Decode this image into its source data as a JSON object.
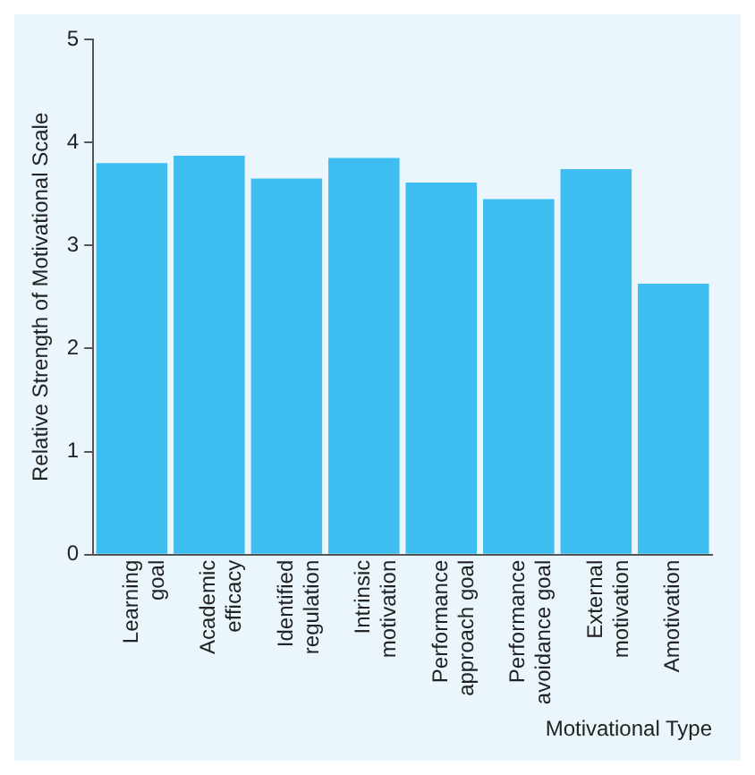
{
  "chart_data": {
    "type": "bar",
    "xlabel": "Motivational Type",
    "ylabel": "Relative Strength of Motivational Scale",
    "categories": [
      "Learning goal",
      "Academic efficacy",
      "Identified regulation",
      "Intrinsic motivation",
      "Performance approach goal",
      "Performance avoidance goal",
      "External motivation",
      "Amotivation"
    ],
    "values": [
      3.8,
      3.87,
      3.65,
      3.85,
      3.61,
      3.45,
      3.74,
      2.63
    ],
    "color": "#3dbdf0",
    "ylim": [
      0,
      5
    ],
    "yticks": [
      0,
      1,
      2,
      3,
      4,
      5
    ],
    "grid": false,
    "legend": false
  }
}
